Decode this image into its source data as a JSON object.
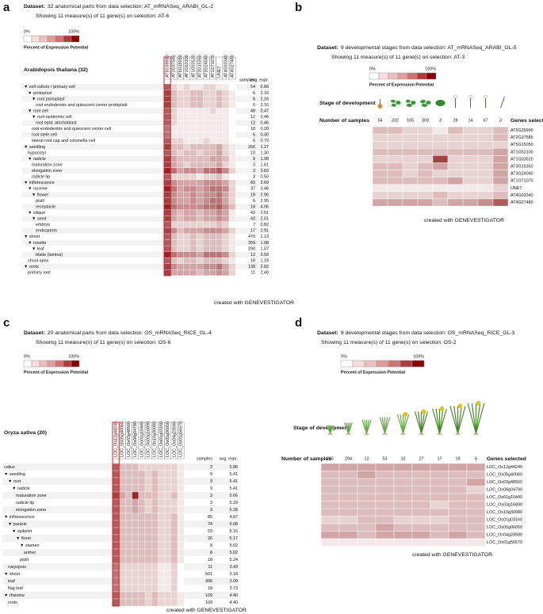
{
  "chart_data": [
    {
      "type": "tree-heatmap",
      "panel": "a",
      "dataset_prefix": "Dataset:",
      "dataset": "32 anatomical parts from data selection: AT_mRNASeq_ARABI_GL-2",
      "showing": "Showing 11 measure(s) of 11 gene(s) on selection: AT-6",
      "legend": {
        "min_label": "0%",
        "max_label": "100%",
        "title": "Percent of Expression Potential"
      },
      "organism": "Arabidopsis thaliana (32)",
      "samples_header": "samples",
      "avg_header": "avg. expr.",
      "genes": [
        "AT5G39990",
        "AT2G37585",
        "AT5G15050",
        "AT1G53100",
        "AT1G03520",
        "AT3G15350",
        "AT3G24040",
        "AT1G71070",
        "UNE7",
        "AT4G03340",
        "AT4G27480"
      ],
      "categories": [
        "▼ cell culture / primary cell",
        "▼ protoplast",
        "▼ root protoplast",
        "root endodermis and quiescent center protoplast",
        "▼ root cell",
        "▼ root epidermis cell",
        "root epid. atrichoblast",
        "root endodermis and quiescent center cell",
        "root stele cell",
        "lateral root cap and columella cell",
        "▼ seedling",
        "hypocotyl",
        "▼ radicle",
        "maturation zone",
        "elongation zone",
        "radicle tip",
        "▼ inflorescence",
        "▼ raceme",
        "▼ flower",
        "pistil",
        "receptacle",
        "▼ silique",
        "▼ seed",
        "embryo",
        "endosperm",
        "▼ shoot",
        "▼ rosette",
        "▼ leaf",
        "blade (lamina)",
        "shoot apex",
        "▼ roots",
        "primary root"
      ],
      "samples": [
        54,
        6,
        6,
        6,
        48,
        12,
        12,
        18,
        6,
        6,
        256,
        10,
        9,
        3,
        3,
        3,
        83,
        37,
        19,
        6,
        18,
        42,
        42,
        7,
        17,
        470,
        355,
        290,
        12,
        16,
        138,
        11
      ],
      "avg_expr": [
        0.66,
        2.16,
        2.16,
        2.16,
        0.47,
        0.46,
        0.46,
        0.28,
        0.3,
        0.79,
        1.27,
        1.3,
        1.98,
        1.61,
        3.83,
        0.5,
        2.69,
        3.46,
        2.9,
        2.95,
        4.06,
        2.01,
        2.01,
        0.82,
        2.91,
        1.13,
        1.08,
        1.07,
        3.59,
        1.19,
        2.82,
        2.4
      ],
      "avg_expr_labels": [
        "0.66",
        "2.16",
        "2.16",
        "2.16",
        "0.47",
        "0.46",
        "0.46",
        "0.28",
        "0.30",
        "0.79",
        "1.27",
        "1.30",
        "1.98",
        "1.61",
        "3.83",
        "0.50",
        "2.69",
        "3.46",
        "2.90",
        "2.95",
        "4.06",
        "2.01",
        "2.01",
        "0.82",
        "2.91",
        "1.13",
        "1.08",
        "1.07",
        "3.59",
        "1.19",
        "2.82",
        "2.40"
      ],
      "values": [
        [
          70,
          20,
          10,
          20,
          10,
          10,
          20,
          20,
          10,
          10,
          0
        ],
        [
          80,
          30,
          20,
          20,
          30,
          30,
          20,
          20,
          30,
          20,
          10
        ],
        [
          80,
          30,
          20,
          20,
          30,
          30,
          20,
          20,
          30,
          20,
          10
        ],
        [
          80,
          30,
          20,
          20,
          30,
          30,
          20,
          20,
          30,
          20,
          10
        ],
        [
          70,
          20,
          10,
          10,
          10,
          10,
          10,
          20,
          10,
          10,
          0
        ],
        [
          70,
          20,
          10,
          10,
          10,
          10,
          10,
          10,
          10,
          10,
          0
        ],
        [
          70,
          20,
          10,
          10,
          10,
          10,
          10,
          10,
          10,
          10,
          0
        ],
        [
          60,
          10,
          10,
          10,
          10,
          10,
          10,
          10,
          10,
          10,
          0
        ],
        [
          60,
          10,
          10,
          10,
          10,
          10,
          10,
          10,
          10,
          10,
          0
        ],
        [
          70,
          20,
          20,
          10,
          10,
          10,
          20,
          10,
          10,
          10,
          0
        ],
        [
          80,
          30,
          30,
          20,
          30,
          30,
          30,
          30,
          40,
          20,
          10
        ],
        [
          70,
          30,
          20,
          30,
          30,
          20,
          30,
          30,
          40,
          20,
          10
        ],
        [
          80,
          40,
          30,
          30,
          30,
          30,
          30,
          40,
          40,
          30,
          10
        ],
        [
          80,
          40,
          30,
          20,
          30,
          30,
          30,
          30,
          40,
          20,
          10
        ],
        [
          90,
          60,
          40,
          50,
          50,
          40,
          60,
          60,
          70,
          50,
          20
        ],
        [
          70,
          20,
          20,
          20,
          20,
          10,
          20,
          20,
          30,
          10,
          0
        ],
        [
          80,
          50,
          40,
          40,
          40,
          40,
          50,
          50,
          50,
          40,
          20
        ],
        [
          90,
          60,
          40,
          50,
          50,
          40,
          50,
          60,
          60,
          50,
          20
        ],
        [
          80,
          50,
          40,
          40,
          50,
          40,
          50,
          50,
          60,
          40,
          20
        ],
        [
          80,
          50,
          40,
          40,
          50,
          40,
          50,
          60,
          60,
          40,
          20
        ],
        [
          90,
          60,
          50,
          50,
          50,
          50,
          60,
          60,
          70,
          50,
          30
        ],
        [
          80,
          40,
          30,
          40,
          40,
          30,
          40,
          40,
          50,
          40,
          10
        ],
        [
          80,
          40,
          30,
          40,
          40,
          30,
          40,
          40,
          50,
          40,
          10
        ],
        [
          70,
          20,
          20,
          20,
          20,
          20,
          20,
          20,
          30,
          20,
          0
        ],
        [
          80,
          50,
          30,
          40,
          40,
          40,
          50,
          50,
          50,
          40,
          20
        ],
        [
          70,
          30,
          20,
          20,
          30,
          20,
          30,
          30,
          30,
          20,
          10
        ],
        [
          70,
          30,
          20,
          20,
          30,
          20,
          30,
          30,
          30,
          20,
          10
        ],
        [
          70,
          30,
          20,
          20,
          30,
          20,
          30,
          30,
          30,
          20,
          10
        ],
        [
          90,
          60,
          50,
          50,
          50,
          40,
          60,
          60,
          60,
          50,
          20
        ],
        [
          70,
          30,
          20,
          30,
          30,
          20,
          30,
          30,
          30,
          20,
          10
        ],
        [
          80,
          50,
          40,
          40,
          40,
          40,
          50,
          50,
          60,
          40,
          20
        ],
        [
          80,
          40,
          40,
          40,
          40,
          30,
          40,
          40,
          50,
          40,
          20
        ]
      ],
      "footer": "created with GENEVESTIGATOR"
    },
    {
      "type": "stage-heatmap",
      "panel": "b",
      "dataset_prefix": "Dataset:",
      "dataset": "9 developmental stages from data selection: AT_mRNASeq_ARABI_GL-5",
      "showing": "Showing 11 measure(s) of 11 gene(s) on selection: AT-3",
      "legend": {
        "min_label": "0%",
        "max_label": "100%",
        "title": "Percent of Expression Potential"
      },
      "stage_label": "Stage of development",
      "samples_label": "Number of samples",
      "genes_label": "Genes selected",
      "samples": [
        54,
        332,
        165,
        303,
        3,
        28,
        14,
        67,
        3
      ],
      "genes": [
        "AT5G39990",
        "AT2G37585",
        "AT5G15050",
        "AT1G53100",
        "AT1G03520",
        "AT3G15350",
        "AT3G24040",
        "AT1G71070",
        "UNE7",
        "AT4G03340",
        "AT4G27480"
      ],
      "values": [
        [
          30,
          30,
          20,
          20,
          10,
          30,
          20,
          20,
          30
        ],
        [
          20,
          20,
          20,
          20,
          20,
          20,
          20,
          20,
          30
        ],
        [
          20,
          20,
          20,
          20,
          20,
          20,
          20,
          20,
          20
        ],
        [
          30,
          30,
          30,
          30,
          30,
          30,
          30,
          30,
          40
        ],
        [
          20,
          20,
          20,
          20,
          80,
          20,
          20,
          20,
          40
        ],
        [
          30,
          30,
          20,
          30,
          40,
          20,
          20,
          20,
          40
        ],
        [
          30,
          30,
          20,
          30,
          20,
          20,
          20,
          20,
          40
        ],
        [
          30,
          30,
          30,
          30,
          30,
          40,
          20,
          20,
          40
        ],
        [
          10,
          10,
          10,
          10,
          10,
          10,
          10,
          10,
          20
        ],
        [
          20,
          20,
          20,
          20,
          30,
          20,
          20,
          20,
          30
        ],
        [
          40,
          40,
          40,
          40,
          30,
          40,
          40,
          50,
          70
        ]
      ],
      "footer": "created with GENEVESTIGATOR"
    },
    {
      "type": "tree-heatmap",
      "panel": "c",
      "dataset_prefix": "Dataset:",
      "dataset": "20 anatomical parts from data selection: OS_mRNASeq_RICE_GL-4",
      "showing": "Showing 11 measure(s) of 11 gene(s) on selection: OS-6",
      "legend": {
        "min_label": "0%",
        "max_label": "100%",
        "title": "Percent of Expression Potential"
      },
      "organism": "Oryza sativa (20)",
      "samples_header": "samples",
      "avg_header": "avg. expr.",
      "genes": [
        "LOC_Os12g44240",
        "LOC_Os05g40060",
        "LOC_Os03g48560",
        "LOC_Os08g04790",
        "LOC_Os01g10440",
        "LOC_Os03g16890",
        "LOC_Os10g30080",
        "LOC_Os01g03160",
        "LOC_Os05g06050",
        "LOC_Os04g23580",
        "LOC_Os01g56570"
      ],
      "categories": [
        "callus",
        "▼ seedling",
        "▼ root",
        "▼ radicle",
        "maturation zone",
        "radicle tip",
        "elongation zone",
        "▼ inflorescence",
        "▼ panicle",
        "▼ spikelet",
        "▼ floret",
        "▼ stamen",
        "anther",
        "pistil",
        "caryopsis",
        "▼ shoot",
        "leaf",
        "flag leaf",
        "▼ rhizome",
        "roots"
      ],
      "samples": [
        2,
        9,
        9,
        9,
        3,
        3,
        3,
        85,
        74,
        53,
        26,
        8,
        8,
        18,
        11,
        501,
        396,
        18,
        109,
        109
      ],
      "avg_expr": [
        5.86,
        5.41,
        5.41,
        5.41,
        5.66,
        5.29,
        5.28,
        4.87,
        5.08,
        5.15,
        5.17,
        5.02,
        5.02,
        5.24,
        3.43,
        3.18,
        3.09,
        3.73,
        4.4,
        4.4
      ],
      "avg_expr_labels": [
        "5.86",
        "5.41",
        "5.41",
        "5.41",
        "5.66",
        "5.29",
        "5.28",
        "4.87",
        "5.08",
        "5.15",
        "5.17",
        "5.02",
        "5.02",
        "5.24",
        "3.43",
        "3.18",
        "3.09",
        "3.73",
        "4.40",
        "4.40"
      ],
      "values": [
        [
          70,
          30,
          30,
          30,
          20,
          20,
          20,
          20,
          20,
          20,
          10
        ],
        [
          70,
          30,
          30,
          30,
          30,
          20,
          30,
          20,
          20,
          20,
          10
        ],
        [
          70,
          30,
          30,
          30,
          30,
          20,
          30,
          20,
          20,
          20,
          10
        ],
        [
          70,
          30,
          30,
          30,
          30,
          20,
          30,
          20,
          20,
          20,
          10
        ],
        [
          80,
          40,
          30,
          90,
          30,
          30,
          30,
          20,
          20,
          30,
          10
        ],
        [
          70,
          30,
          30,
          40,
          30,
          20,
          30,
          20,
          20,
          20,
          10
        ],
        [
          70,
          30,
          30,
          40,
          30,
          20,
          30,
          20,
          20,
          20,
          10
        ],
        [
          70,
          30,
          30,
          30,
          30,
          30,
          30,
          20,
          20,
          30,
          10
        ],
        [
          70,
          30,
          30,
          30,
          30,
          30,
          30,
          20,
          20,
          30,
          10
        ],
        [
          70,
          30,
          30,
          30,
          30,
          30,
          30,
          20,
          20,
          30,
          10
        ],
        [
          70,
          30,
          30,
          30,
          30,
          30,
          30,
          20,
          20,
          30,
          10
        ],
        [
          70,
          30,
          30,
          30,
          30,
          30,
          30,
          20,
          20,
          30,
          10
        ],
        [
          70,
          30,
          30,
          30,
          30,
          30,
          30,
          20,
          20,
          30,
          10
        ],
        [
          70,
          30,
          30,
          30,
          30,
          30,
          30,
          20,
          20,
          30,
          10
        ],
        [
          60,
          20,
          20,
          20,
          20,
          20,
          20,
          10,
          10,
          20,
          0
        ],
        [
          60,
          20,
          20,
          20,
          20,
          20,
          20,
          10,
          10,
          20,
          0
        ],
        [
          60,
          20,
          20,
          20,
          20,
          20,
          20,
          10,
          10,
          20,
          0
        ],
        [
          60,
          20,
          20,
          20,
          20,
          20,
          20,
          10,
          10,
          20,
          0
        ],
        [
          70,
          30,
          30,
          30,
          30,
          20,
          30,
          20,
          20,
          20,
          10
        ],
        [
          70,
          30,
          30,
          30,
          30,
          20,
          30,
          20,
          20,
          20,
          10
        ]
      ],
      "footer": "created with GENEVESTIGATOR"
    },
    {
      "type": "stage-heatmap",
      "panel": "d",
      "dataset_prefix": "Dataset:",
      "dataset": "9 developmental stages from data selection: OS_mRNASeq_RICE_GL-3",
      "showing": "Showing 11 measure(s) of 11 gene(s) on selection: OS-2",
      "legend": {
        "min_label": "0%",
        "max_label": "100%",
        "title": "Percent of Expression Potential"
      },
      "stage_label": "Stage of development",
      "samples_label": "Number of samples",
      "genes_label": "Genes selected",
      "samples": [
        265,
        294,
        12,
        53,
        12,
        27,
        17,
        18,
        6
      ],
      "genes": [
        "LOC_Os12g44240",
        "LOC_Os05g40060",
        "LOC_Os03g48560",
        "LOC_Os08g04790",
        "LOC_Os01g10440",
        "LOC_Os03g16890",
        "LOC_Os10g30080",
        "LOC_Os01g03160",
        "LOC_Os05g06050",
        "LOC_Os04g23580",
        "LOC_Os01g56570"
      ],
      "values": [
        [
          40,
          40,
          40,
          40,
          40,
          40,
          40,
          40,
          40
        ],
        [
          30,
          30,
          40,
          30,
          30,
          30,
          30,
          30,
          30
        ],
        [
          30,
          30,
          30,
          30,
          30,
          30,
          30,
          30,
          40
        ],
        [
          30,
          30,
          30,
          30,
          30,
          30,
          30,
          30,
          20
        ],
        [
          30,
          30,
          30,
          30,
          30,
          30,
          30,
          30,
          30
        ],
        [
          30,
          30,
          30,
          30,
          30,
          30,
          20,
          30,
          30
        ],
        [
          30,
          30,
          30,
          30,
          30,
          30,
          30,
          30,
          30
        ],
        [
          20,
          20,
          30,
          30,
          20,
          20,
          20,
          30,
          30
        ],
        [
          30,
          30,
          30,
          40,
          30,
          30,
          30,
          30,
          30
        ],
        [
          40,
          40,
          30,
          40,
          40,
          40,
          30,
          40,
          30
        ],
        [
          10,
          10,
          10,
          10,
          10,
          10,
          10,
          10,
          10
        ]
      ],
      "footer": "created with GENEVESTIGATOR"
    }
  ]
}
